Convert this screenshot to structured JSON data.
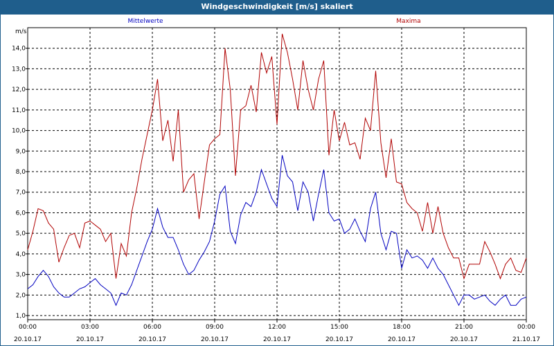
{
  "window": {
    "title": "Windgeschwindigkeit [m/s] skaliert"
  },
  "chart_data": {
    "type": "line",
    "title": "Windgeschwindigkeit [m/s] skaliert",
    "ylabel": "m/s",
    "ylim": [
      0.8,
      15.0
    ],
    "yticks": [
      "1,0",
      "2,0",
      "3,0",
      "4,0",
      "5,0",
      "6,0",
      "7,0",
      "8,0",
      "9,0",
      "10,0",
      "11,0",
      "12,0",
      "13,0",
      "14,0"
    ],
    "xticks": [
      {
        "time": "00:00",
        "date": "20.10.17"
      },
      {
        "time": "03:00",
        "date": "20.10.17"
      },
      {
        "time": "06:00",
        "date": "20.10.17"
      },
      {
        "time": "09:00",
        "date": "20.10.17"
      },
      {
        "time": "12:00",
        "date": "20.10.17"
      },
      {
        "time": "15:00",
        "date": "20.10.17"
      },
      {
        "time": "18:00",
        "date": "20.10.17"
      },
      {
        "time": "21:00",
        "date": "20.10.17"
      },
      {
        "time": "00:00",
        "date": "21.10.17"
      }
    ],
    "grid": true,
    "legend_placement": "top",
    "series": [
      {
        "name": "Mittelwerte",
        "color": "#0000c0",
        "x": [
          0.0,
          0.25,
          0.5,
          0.75,
          1.0,
          1.25,
          1.5,
          1.75,
          2.0,
          2.25,
          2.5,
          2.75,
          3.0,
          3.25,
          3.5,
          3.75,
          4.0,
          4.25,
          4.5,
          4.75,
          5.0,
          5.25,
          5.5,
          5.75,
          6.0,
          6.25,
          6.5,
          6.75,
          7.0,
          7.25,
          7.5,
          7.75,
          8.0,
          8.25,
          8.5,
          8.75,
          9.0,
          9.25,
          9.5,
          9.75,
          10.0,
          10.25,
          10.5,
          10.75,
          11.0,
          11.25,
          11.5,
          11.75,
          12.0,
          12.25,
          12.5,
          12.75,
          13.0,
          13.25,
          13.5,
          13.75,
          14.0,
          14.25,
          14.5,
          14.75,
          15.0,
          15.25,
          15.5,
          15.75,
          16.0,
          16.25,
          16.5,
          16.75,
          17.0,
          17.25,
          17.5,
          17.75,
          18.0,
          18.25,
          18.5,
          18.75,
          19.0,
          19.25,
          19.5,
          19.75,
          20.0,
          20.25,
          20.5,
          20.75,
          21.0,
          21.25,
          21.5,
          21.75,
          22.0,
          22.25,
          22.5,
          22.75,
          23.0,
          23.25,
          23.5,
          23.75,
          24.0
        ],
        "values": [
          2.3,
          2.5,
          2.9,
          3.2,
          2.9,
          2.4,
          2.1,
          1.9,
          1.9,
          2.1,
          2.3,
          2.4,
          2.6,
          2.8,
          2.5,
          2.3,
          2.1,
          1.5,
          2.1,
          2.0,
          2.5,
          3.2,
          3.9,
          4.6,
          5.2,
          6.2,
          5.3,
          4.8,
          4.8,
          4.2,
          3.5,
          3.0,
          3.2,
          3.7,
          4.1,
          4.6,
          5.6,
          6.9,
          7.3,
          5.1,
          4.5,
          5.9,
          6.5,
          6.3,
          7.0,
          8.1,
          7.4,
          6.7,
          6.3,
          8.8,
          7.8,
          7.5,
          6.1,
          7.5,
          7.0,
          5.6,
          6.9,
          8.1,
          6.0,
          5.6,
          5.7,
          5.0,
          5.2,
          5.7,
          5.1,
          4.6,
          6.2,
          7.0,
          5.0,
          4.2,
          5.1,
          5.0,
          3.3,
          4.2,
          3.8,
          3.9,
          3.7,
          3.3,
          3.8,
          3.3,
          3.0,
          2.5,
          2.0,
          1.5,
          2.0,
          2.0,
          1.8,
          1.9,
          2.0,
          1.7,
          1.5,
          1.8,
          2.0,
          1.5,
          1.5,
          1.8,
          1.9
        ]
      },
      {
        "name": "Maxima",
        "color": "#b00000",
        "x": [
          0.0,
          0.25,
          0.5,
          0.75,
          1.0,
          1.25,
          1.5,
          1.75,
          2.0,
          2.25,
          2.5,
          2.75,
          3.0,
          3.25,
          3.5,
          3.75,
          4.0,
          4.25,
          4.5,
          4.75,
          5.0,
          5.25,
          5.5,
          5.75,
          6.0,
          6.25,
          6.5,
          6.75,
          7.0,
          7.25,
          7.5,
          7.75,
          8.0,
          8.25,
          8.5,
          8.75,
          9.0,
          9.25,
          9.5,
          9.75,
          10.0,
          10.25,
          10.5,
          10.75,
          11.0,
          11.25,
          11.5,
          11.75,
          12.0,
          12.25,
          12.5,
          12.75,
          13.0,
          13.25,
          13.5,
          13.75,
          14.0,
          14.25,
          14.5,
          14.75,
          15.0,
          15.25,
          15.5,
          15.75,
          16.0,
          16.25,
          16.5,
          16.75,
          17.0,
          17.25,
          17.5,
          17.75,
          18.0,
          18.25,
          18.5,
          18.75,
          19.0,
          19.25,
          19.5,
          19.75,
          20.0,
          20.25,
          20.5,
          20.75,
          21.0,
          21.25,
          21.5,
          21.75,
          22.0,
          22.25,
          22.5,
          22.75,
          23.0,
          23.25,
          23.5,
          23.75,
          24.0
        ],
        "values": [
          4.2,
          5.1,
          6.2,
          6.1,
          5.5,
          5.2,
          3.6,
          4.3,
          4.9,
          5.0,
          4.3,
          5.5,
          5.6,
          5.4,
          5.2,
          4.6,
          5.0,
          2.8,
          4.5,
          3.9,
          6.0,
          7.2,
          8.6,
          9.8,
          11.0,
          12.5,
          9.5,
          10.5,
          8.5,
          11.0,
          7.0,
          7.6,
          7.9,
          5.7,
          7.5,
          9.3,
          9.6,
          9.8,
          14.0,
          12.0,
          7.8,
          11.0,
          11.2,
          12.2,
          10.9,
          13.8,
          12.8,
          13.6,
          10.3,
          14.7,
          13.8,
          12.5,
          11.0,
          13.4,
          12.0,
          11.0,
          12.5,
          13.4,
          8.8,
          11.0,
          9.5,
          10.4,
          9.3,
          9.4,
          8.6,
          10.6,
          10.0,
          12.9,
          9.4,
          7.7,
          9.6,
          7.5,
          7.4,
          6.5,
          6.2,
          6.0,
          5.1,
          6.5,
          5.0,
          6.3,
          5.0,
          4.3,
          3.8,
          3.8,
          2.8,
          3.5,
          3.5,
          3.5,
          4.6,
          4.1,
          3.5,
          2.8,
          3.5,
          3.8,
          3.2,
          3.1,
          3.8
        ]
      }
    ]
  }
}
